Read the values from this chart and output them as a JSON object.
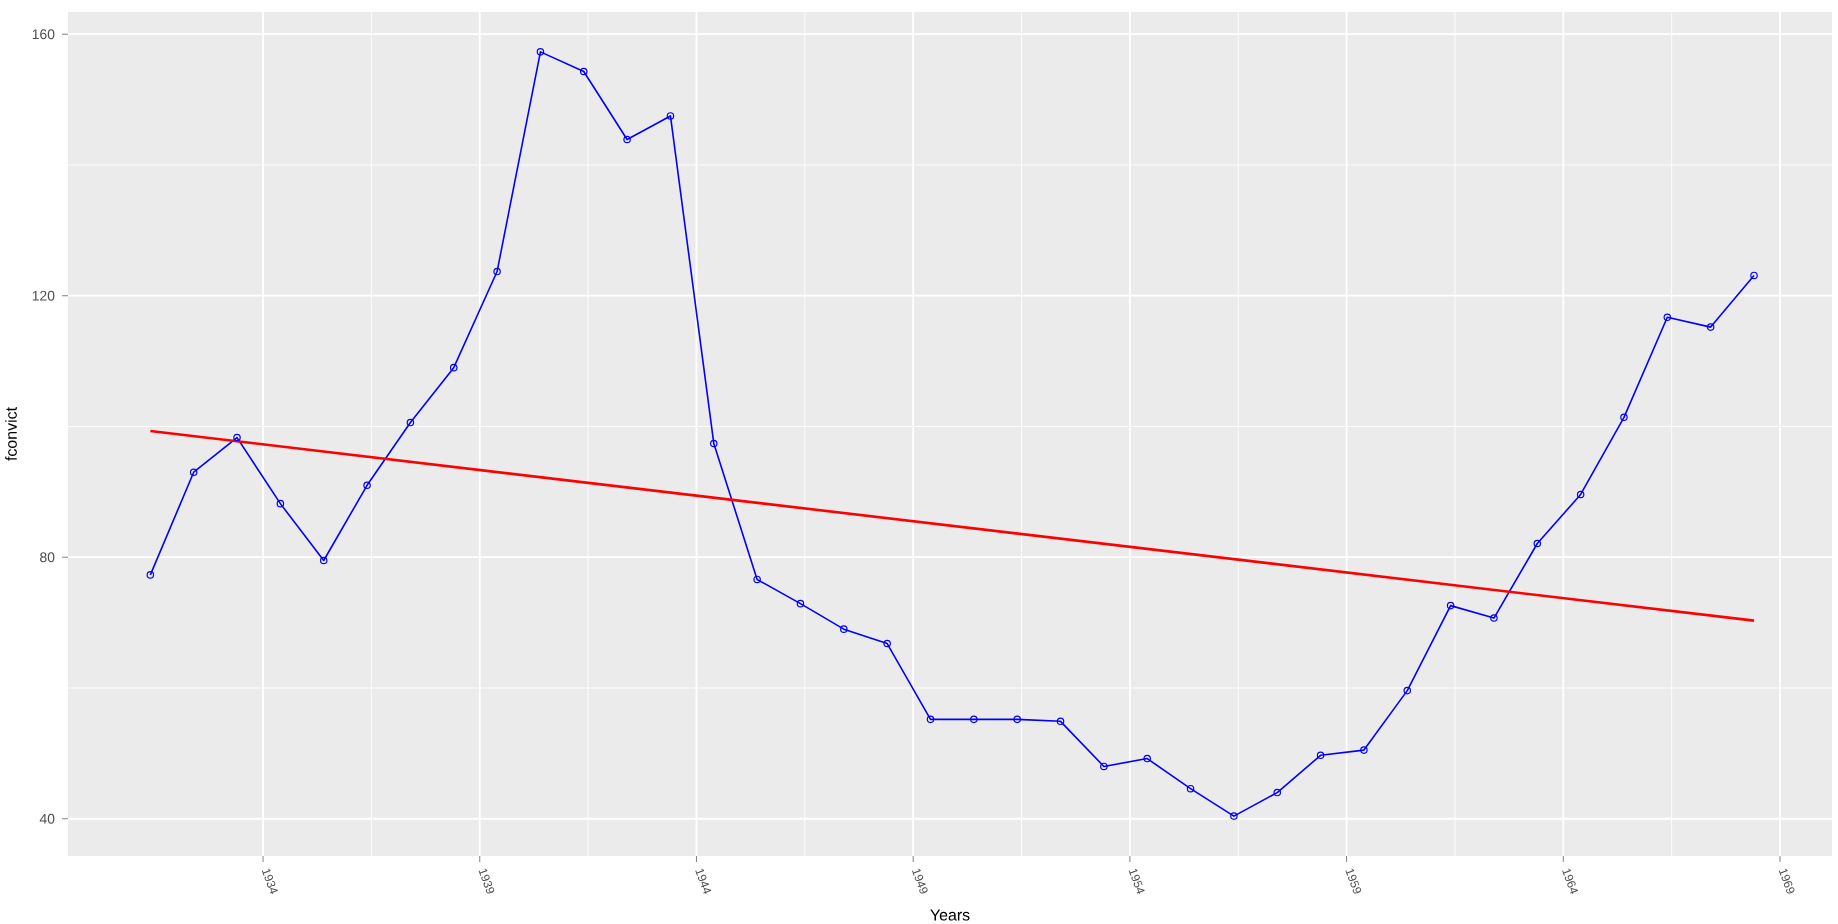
{
  "chart_data": {
    "type": "line",
    "xlabel": "Years",
    "ylabel": "fconvict",
    "xlim": [
      1929.5,
      1970.2
    ],
    "ylim": [
      34.3,
      163.4
    ],
    "xticks": [
      1934,
      1939,
      1944,
      1949,
      1954,
      1959,
      1964,
      1969
    ],
    "yticks": [
      40,
      80,
      120,
      160
    ],
    "grid": true,
    "marker": "circle",
    "line_style": "solid",
    "series": [
      {
        "color": "#0000ff",
        "x": [
          1931.4,
          1932.4,
          1933.4,
          1934.4,
          1935.4,
          1936.4,
          1937.4,
          1938.4,
          1939.4,
          1940.4,
          1941.4,
          1942.4,
          1943.4,
          1944.4,
          1945.4,
          1946.4,
          1947.4,
          1948.4,
          1949.4,
          1950.4,
          1951.4,
          1952.4,
          1953.4,
          1954.4,
          1955.4,
          1956.4,
          1957.4,
          1958.4,
          1959.4,
          1960.4,
          1961.4,
          1962.4,
          1963.4,
          1964.4,
          1965.4,
          1966.4,
          1967.4,
          1968.4
        ],
        "values": [
          77.3,
          93.0,
          98.3,
          88.2,
          79.5,
          91.0,
          100.6,
          109.0,
          123.7,
          157.3,
          154.3,
          143.9,
          147.5,
          97.4,
          76.6,
          72.9,
          69.0,
          66.8,
          55.2,
          55.2,
          55.2,
          54.9,
          48.0,
          49.2,
          44.6,
          40.4,
          44.0,
          49.7,
          50.5,
          59.6,
          72.6,
          70.7,
          82.1,
          89.6,
          101.4,
          116.7,
          115.2,
          123.1
        ]
      },
      {
        "type": "line",
        "color": "#ff0000",
        "marker": "none",
        "x": [
          1931.4,
          1968.4
        ],
        "values": [
          99.3,
          70.3
        ]
      }
    ]
  }
}
